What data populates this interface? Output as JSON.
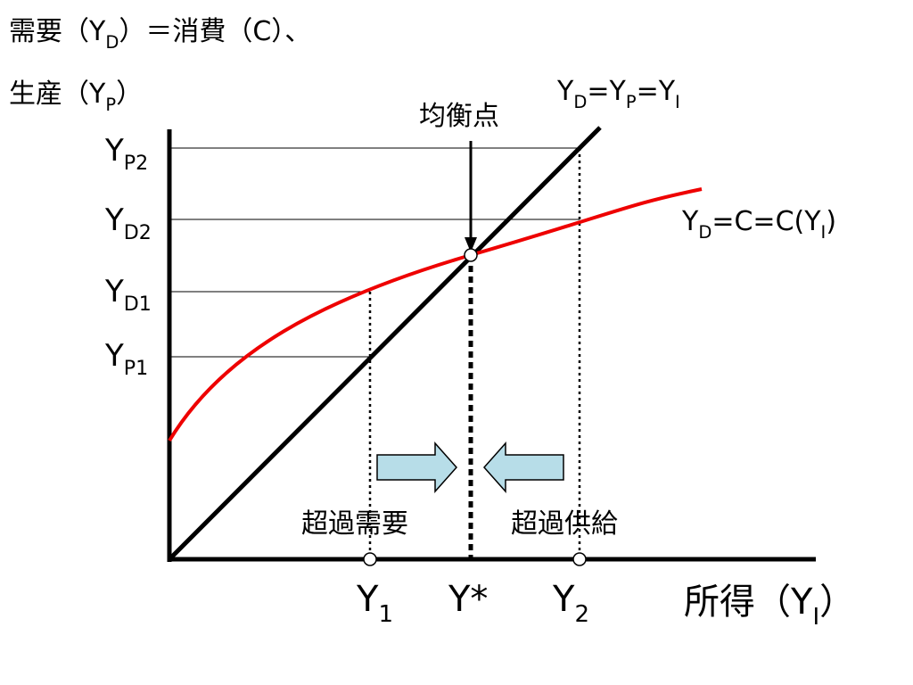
{
  "labels": {
    "demand_axis": [
      {
        "text": "需要（Y"
      },
      {
        "text": "D",
        "sub": true
      },
      {
        "text": "）＝消費（C）、"
      }
    ],
    "production_axis": [
      {
        "text": "生産（Y"
      },
      {
        "text": "P",
        "sub": true
      },
      {
        "text": "）"
      }
    ],
    "line_label": [
      {
        "text": "Y"
      },
      {
        "text": "D",
        "sub": true
      },
      {
        "text": "=Y"
      },
      {
        "text": "P",
        "sub": true
      },
      {
        "text": "=Y"
      },
      {
        "text": "I",
        "sub": true
      }
    ],
    "curve_label": [
      {
        "text": "Y"
      },
      {
        "text": "D",
        "sub": true
      },
      {
        "text": "=C=C(Y"
      },
      {
        "text": "I",
        "sub": true
      },
      {
        "text": ")"
      }
    ],
    "equilibrium": [
      {
        "text": "均衡点"
      }
    ],
    "ytick_p2": [
      {
        "text": "Y"
      },
      {
        "text": "P2",
        "sub": true
      }
    ],
    "ytick_d2": [
      {
        "text": "Y"
      },
      {
        "text": "D2",
        "sub": true
      }
    ],
    "ytick_d1": [
      {
        "text": "Y"
      },
      {
        "text": "D1",
        "sub": true
      }
    ],
    "ytick_p1": [
      {
        "text": "Y"
      },
      {
        "text": "P1",
        "sub": true
      }
    ],
    "xtick_1": [
      {
        "text": "Y"
      },
      {
        "text": "1",
        "sub": true
      }
    ],
    "xtick_star": [
      {
        "text": "Y*"
      }
    ],
    "xtick_2": [
      {
        "text": "Y"
      },
      {
        "text": "2",
        "sub": true
      }
    ],
    "income_axis": [
      {
        "text": "所得（Y"
      },
      {
        "text": "I",
        "sub": true
      },
      {
        "text": "）"
      }
    ],
    "excess_demand": [
      {
        "text": "超過需要"
      }
    ],
    "excess_supply": [
      {
        "text": "超過供給"
      }
    ]
  }
}
